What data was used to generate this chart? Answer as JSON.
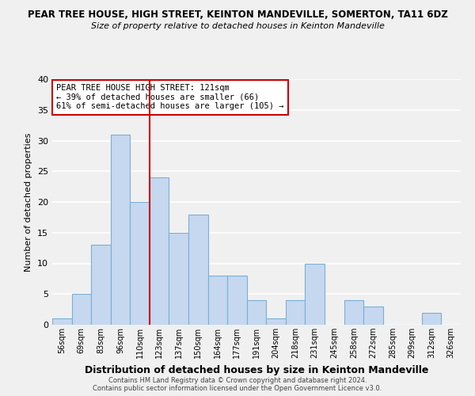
{
  "title": "PEAR TREE HOUSE, HIGH STREET, KEINTON MANDEVILLE, SOMERTON, TA11 6DZ",
  "subtitle": "Size of property relative to detached houses in Keinton Mandeville",
  "xlabel": "Distribution of detached houses by size in Keinton Mandeville",
  "ylabel": "Number of detached properties",
  "bin_labels": [
    "56sqm",
    "69sqm",
    "83sqm",
    "96sqm",
    "110sqm",
    "123sqm",
    "137sqm",
    "150sqm",
    "164sqm",
    "177sqm",
    "191sqm",
    "204sqm",
    "218sqm",
    "231sqm",
    "245sqm",
    "258sqm",
    "272sqm",
    "285sqm",
    "299sqm",
    "312sqm",
    "326sqm"
  ],
  "bar_values": [
    1,
    5,
    13,
    31,
    20,
    24,
    15,
    18,
    8,
    8,
    4,
    1,
    4,
    10,
    0,
    4,
    3,
    0,
    0,
    2,
    0
  ],
  "bar_color": "#c5d8f0",
  "bar_edgecolor": "#7bafd4",
  "vline_x": 5,
  "vline_color": "#cc0000",
  "ylim": [
    0,
    40
  ],
  "yticks": [
    0,
    5,
    10,
    15,
    20,
    25,
    30,
    35,
    40
  ],
  "annotation_title": "PEAR TREE HOUSE HIGH STREET: 121sqm",
  "annotation_line1": "← 39% of detached houses are smaller (66)",
  "annotation_line2": "61% of semi-detached houses are larger (105) →",
  "footer1": "Contains HM Land Registry data © Crown copyright and database right 2024.",
  "footer2": "Contains public sector information licensed under the Open Government Licence v3.0.",
  "bg_color": "#f0f0f0"
}
